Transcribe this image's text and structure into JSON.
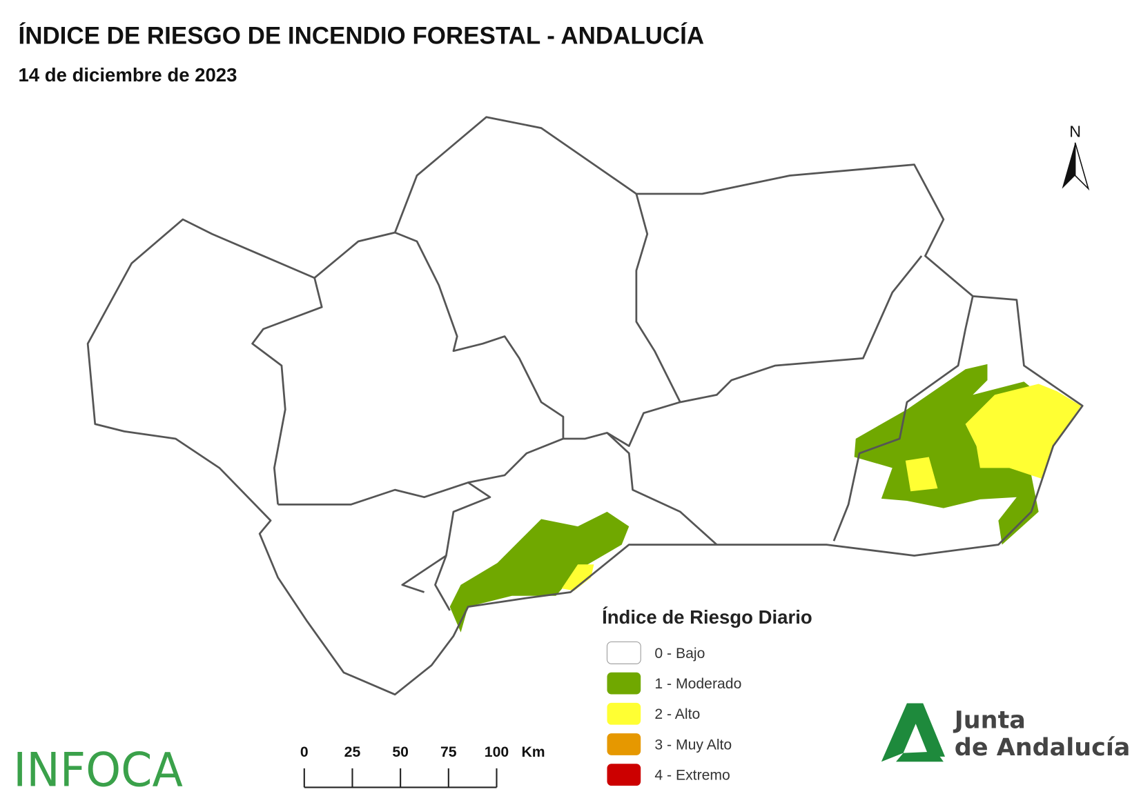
{
  "header": {
    "title": "ÍNDICE DE RIESGO DE INCENDIO FORESTAL - ANDALUCÍA",
    "subtitle": "14 de diciembre de 2023"
  },
  "legend": {
    "title": "Índice de Riesgo Diario",
    "items": [
      {
        "label": "0 - Bajo",
        "color": "#ffffff"
      },
      {
        "label": "1 - Moderado",
        "color": "#70a800"
      },
      {
        "label": "2 - Alto",
        "color": "#ffff33"
      },
      {
        "label": "3 - Muy Alto",
        "color": "#e69800"
      },
      {
        "label": "4 - Extremo",
        "color": "#cc0000"
      }
    ]
  },
  "scale_bar": {
    "ticks": [
      0,
      25,
      50,
      75,
      100
    ],
    "unit": "Km"
  },
  "north_arrow": "N",
  "logos": {
    "infoca": "INFOCA",
    "junta": [
      "Junta",
      "de Andalucía"
    ]
  }
}
